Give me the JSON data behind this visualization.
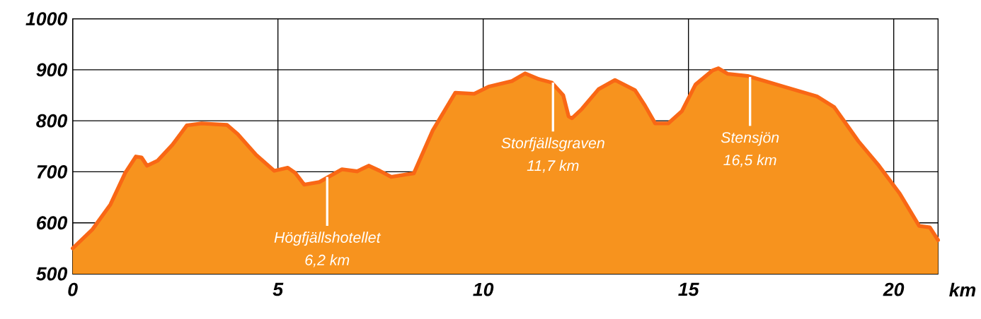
{
  "chart_data": {
    "type": "area",
    "xlabel": "km",
    "x": [
      0,
      0.48,
      0.92,
      1.28,
      1.54,
      1.68,
      1.81,
      2.07,
      2.43,
      2.78,
      3.14,
      3.76,
      4.02,
      4.47,
      4.91,
      5.24,
      5.42,
      5.64,
      6.01,
      6.56,
      6.93,
      7.21,
      7.48,
      7.76,
      8.13,
      8.31,
      8.77,
      9.32,
      9.78,
      10.13,
      10.7,
      11.02,
      11.35,
      11.67,
      11.95,
      12.08,
      12.16,
      12.4,
      12.81,
      13.21,
      13.7,
      13.94,
      14.19,
      14.51,
      14.84,
      15.17,
      15.59,
      15.73,
      15.96,
      16.44,
      17.28,
      18.13,
      18.55,
      19.14,
      19.64,
      20.15,
      20.62,
      20.88,
      21.08
    ],
    "series": [
      {
        "color": "#f7931e",
        "values": [
          550,
          587,
          636,
          698,
          730,
          728,
          712,
          722,
          753,
          791,
          795,
          792,
          774,
          733,
          702,
          708,
          698,
          675,
          680,
          705,
          701,
          712,
          702,
          690,
          695,
          697,
          781,
          855,
          853,
          867,
          878,
          893,
          882,
          875,
          850,
          809,
          805,
          823,
          862,
          880,
          860,
          830,
          795,
          795,
          819,
          871,
          899,
          903,
          892,
          888,
          868,
          848,
          827,
          760,
          712,
          657,
          594,
          591,
          566
        ]
      }
    ],
    "xlim": [
      0,
      21.08
    ],
    "ylim": [
      500,
      1000
    ],
    "xticks": [
      0,
      5,
      10,
      15,
      20
    ],
    "yticks": [
      500,
      600,
      700,
      800,
      900,
      1000
    ],
    "grid": true,
    "annotations": [
      {
        "text": "Högfjällshotellet",
        "x": 6.2,
        "y": 690
      },
      "6,2 km",
      {
        "text": "Storfjällsgraven",
        "x": 11.7,
        "y": 875
      },
      "11,7 km",
      {
        "text": "Stensjön",
        "x": 16.5,
        "y": 886
      },
      "16,5 km"
    ]
  }
}
